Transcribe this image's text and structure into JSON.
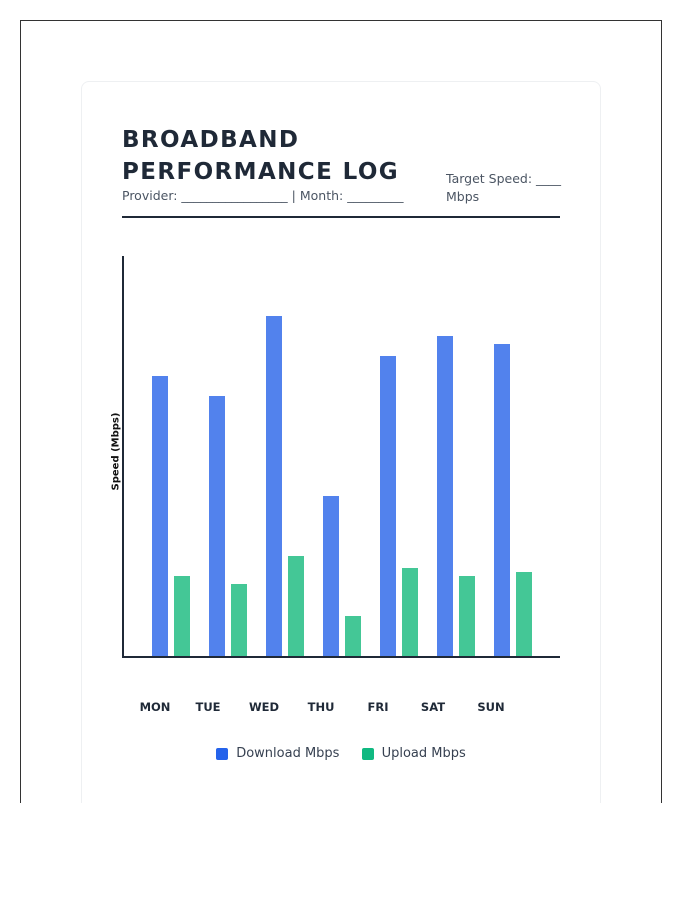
{
  "header": {
    "title": "BROADBAND PERFORMANCE LOG",
    "meta": "Provider: _________________ | Month: _________",
    "target": "Target Speed: ____ Mbps"
  },
  "colors": {
    "download": "#5282ed",
    "upload": "#44c796",
    "legend_download": "#2563eb",
    "legend_upload": "#10b981",
    "text": "#1f2937"
  },
  "legend": {
    "download": "Download Mbps",
    "upload": "Upload Mbps"
  },
  "chart_data": {
    "type": "bar",
    "title": "BROADBAND PERFORMANCE LOG",
    "xlabel": "",
    "ylabel": "Speed (Mbps)",
    "ylim": [
      0,
      100
    ],
    "grid": false,
    "legend_position": "bottom",
    "categories": [
      "MON",
      "TUE",
      "WED",
      "THU",
      "FRI",
      "SAT",
      "SUN"
    ],
    "series": [
      {
        "name": "Download Mbps",
        "values": [
          70,
          65,
          85,
          40,
          75,
          80,
          78
        ]
      },
      {
        "name": "Upload Mbps",
        "values": [
          20,
          18,
          25,
          10,
          22,
          20,
          21
        ]
      }
    ]
  }
}
